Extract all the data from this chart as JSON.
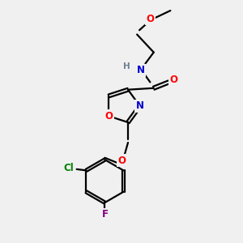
{
  "bg_color": "#f0f0f0",
  "bond_color": "#000000",
  "N_color": "#0000cd",
  "O_color": "#ff0000",
  "Cl_color": "#008000",
  "F_color": "#800080",
  "H_color": "#708090",
  "line_width": 1.6,
  "font_size": 8.5,
  "figsize": [
    3.0,
    3.0
  ],
  "dpi": 100,
  "xlim": [
    0,
    10
  ],
  "ylim": [
    0,
    10
  ]
}
